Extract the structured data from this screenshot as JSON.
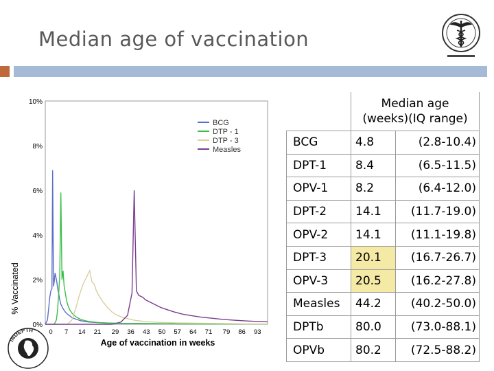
{
  "slide": {
    "title": "Median age of vaccination"
  },
  "colors": {
    "accent_small": "#c06a3c",
    "accent_bar": "#a4bad6",
    "bcg": "#5b6fc6",
    "dtp1": "#3cbf4a",
    "dtp3": "#d9cfa0",
    "measles": "#7a3d8f",
    "highlight": "#f5e9a6"
  },
  "table": {
    "header": [
      "Median age",
      "(weeks)(IQ range)"
    ],
    "rows": [
      {
        "vaccine": "BCG",
        "median": "4.8",
        "iqr": "(2.8-10.4)",
        "highlight": false
      },
      {
        "vaccine": "DPT-1",
        "median": "8.4",
        "iqr": "(6.5-11.5)",
        "highlight": false
      },
      {
        "vaccine": "OPV-1",
        "median": "8.2",
        "iqr": "(6.4-12.0)",
        "highlight": false
      },
      {
        "vaccine": "DPT-2",
        "median": "14.1",
        "iqr": "(11.7-19.0)",
        "highlight": false
      },
      {
        "vaccine": "OPV-2",
        "median": "14.1",
        "iqr": "(11.1-19.8)",
        "highlight": false
      },
      {
        "vaccine": "DPT-3",
        "median": "20.1",
        "iqr": "(16.7-26.7)",
        "highlight": true
      },
      {
        "vaccine": "OPV-3",
        "median": "20.5",
        "iqr": "(16.2-27.8)",
        "highlight": true
      },
      {
        "vaccine": "Measles",
        "median": "44.2",
        "iqr": "(40.2-50.0)",
        "highlight": false
      },
      {
        "vaccine": "DPTb",
        "median": "80.0",
        "iqr": "(73.0-88.1)",
        "highlight": false
      },
      {
        "vaccine": "OPVb",
        "median": "80.2",
        "iqr": "(72.5-88.2)",
        "highlight": false
      }
    ]
  },
  "logo": {
    "emblem": "caduceus-emblem",
    "indepth_text": "INDEPTH"
  },
  "chart_data": {
    "type": "line",
    "xlabel": "Age of vaccination in weeks",
    "ylabel": "% Vaccinated",
    "xlim": [
      0,
      100
    ],
    "ylim": [
      0,
      10
    ],
    "grid": false,
    "legend": "top-right",
    "x_ticks": [
      0,
      7,
      14,
      21,
      29,
      36,
      43,
      50,
      57,
      64,
      71,
      79,
      86,
      93
    ],
    "x_tick_labels": [
      "0",
      "7",
      "14",
      "21",
      "29",
      "36",
      "43",
      "50",
      "57",
      "64",
      "71",
      "79",
      "86",
      "93"
    ],
    "y_ticks": [
      0,
      2,
      4,
      6,
      8,
      10
    ],
    "y_tick_labels": [
      "0%",
      "2%",
      "4%",
      "6%",
      "8%",
      "10%"
    ],
    "series": [
      {
        "name": "BCG",
        "color": "#5b6fc6",
        "x": [
          0,
          1,
          1.5,
          2,
          2.5,
          3,
          3.3,
          3.7,
          4,
          4.4,
          4.8,
          5.2,
          5.6,
          6,
          6.5,
          7,
          8,
          9,
          10,
          11,
          12,
          14,
          16,
          18,
          20,
          24,
          28,
          35,
          45,
          60,
          75,
          90,
          100
        ],
        "y": [
          0,
          0.2,
          0.7,
          1.2,
          1.5,
          1.6,
          6.9,
          1.7,
          1.9,
          2.3,
          2.1,
          1.9,
          1.6,
          1.4,
          1.1,
          0.9,
          0.7,
          0.55,
          0.45,
          0.38,
          0.3,
          0.22,
          0.16,
          0.12,
          0.1,
          0.07,
          0.05,
          0.04,
          0.03,
          0.02,
          0.02,
          0.01,
          0.01
        ]
      },
      {
        "name": "DTP - 1",
        "color": "#3cbf4a",
        "x": [
          0,
          4,
          5,
          5.5,
          6,
          6.5,
          7,
          7.5,
          8,
          8.5,
          9,
          9.5,
          10,
          11,
          12,
          13,
          14,
          16,
          18,
          20,
          24,
          28,
          35,
          45,
          60,
          75,
          90,
          100
        ],
        "y": [
          0,
          0,
          0.2,
          0.6,
          1.3,
          2.2,
          5.9,
          2.0,
          2.4,
          1.7,
          1.4,
          1.1,
          0.9,
          0.65,
          0.5,
          0.4,
          0.32,
          0.22,
          0.16,
          0.12,
          0.08,
          0.06,
          0.04,
          0.03,
          0.02,
          0.01,
          0.01,
          0.01
        ]
      },
      {
        "name": "DTP - 3",
        "color": "#d9cfa0",
        "x": [
          0,
          10,
          12,
          13,
          14,
          15,
          16,
          17,
          18,
          19,
          20,
          21,
          22,
          23,
          24,
          26,
          28,
          30,
          32,
          35,
          40,
          45,
          50,
          60,
          75,
          90,
          100
        ],
        "y": [
          0,
          0,
          0.2,
          0.5,
          0.8,
          1.2,
          1.5,
          1.8,
          2.0,
          2.2,
          2.4,
          1.9,
          1.8,
          1.5,
          1.3,
          1.0,
          0.75,
          0.55,
          0.42,
          0.3,
          0.18,
          0.12,
          0.09,
          0.06,
          0.04,
          0.02,
          0.02
        ]
      },
      {
        "name": "Measles",
        "color": "#7a3d8f",
        "x": [
          0,
          30,
          34,
          37,
          38,
          39,
          40,
          41,
          42,
          43,
          44,
          45,
          46,
          48,
          50,
          52,
          55,
          58,
          62,
          66,
          70,
          75,
          80,
          85,
          90,
          95,
          100
        ],
        "y": [
          0,
          0,
          0.1,
          0.4,
          0.9,
          1.4,
          6.0,
          1.5,
          1.3,
          1.25,
          1.2,
          1.1,
          1.05,
          0.95,
          0.85,
          0.75,
          0.65,
          0.55,
          0.45,
          0.38,
          0.32,
          0.27,
          0.22,
          0.18,
          0.15,
          0.13,
          0.11
        ]
      }
    ]
  }
}
